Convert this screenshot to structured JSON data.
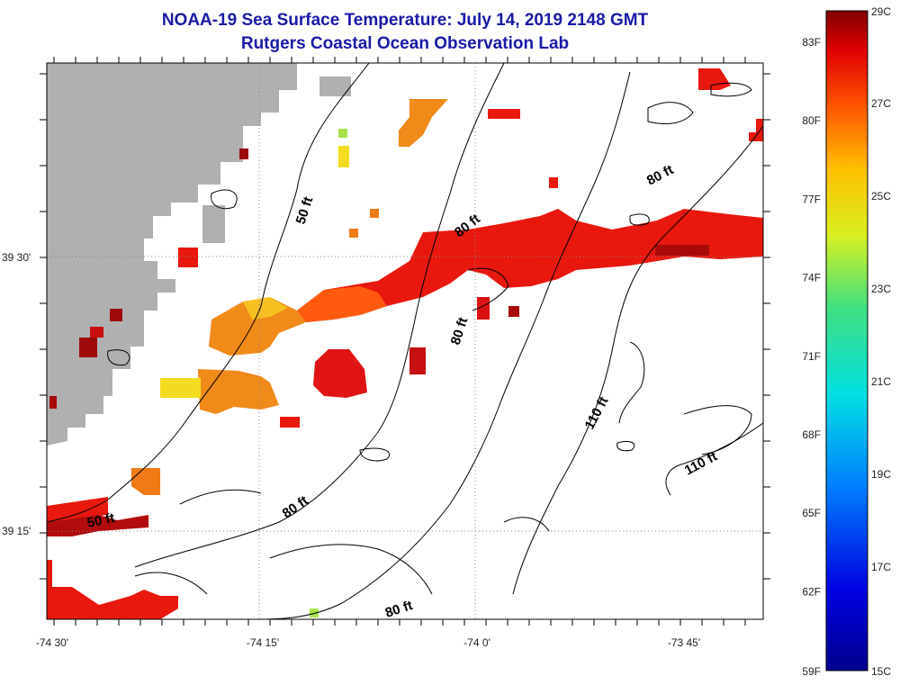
{
  "header": {
    "title_line1": "NOAA-19 Sea Surface Temperature:  July 14, 2019 2148 GMT",
    "title_line2": "Rutgers Coastal Ocean Observation Lab"
  },
  "map": {
    "lon_ticks": [
      "-74 30'",
      "-74 15'",
      "-74 0'",
      "-73 45'"
    ],
    "lat_ticks": [
      "39 30'",
      "39 15'"
    ],
    "contour_labels": [
      "50 ft",
      "80 ft",
      "80 ft",
      "80 ft",
      "110 ft",
      "110 ft",
      "50 ft",
      "80 ft",
      "80 ft"
    ]
  },
  "colorbar": {
    "fahrenheit": [
      "83F",
      "80F",
      "77F",
      "74F",
      "71F",
      "68F",
      "65F",
      "62F",
      "59F"
    ],
    "celsius": [
      "29C",
      "27C",
      "25C",
      "23C",
      "21C",
      "19C",
      "17C",
      "15C"
    ]
  },
  "colors": {
    "land": "#b0b0b0",
    "title": "#1a1aa8",
    "sst_warm": "#e0140c",
    "sst_hot": "#9e0a0a",
    "sst_orange": "#f07a14",
    "sst_yellow": "#f3dc20",
    "sst_green": "#a8e34a"
  }
}
